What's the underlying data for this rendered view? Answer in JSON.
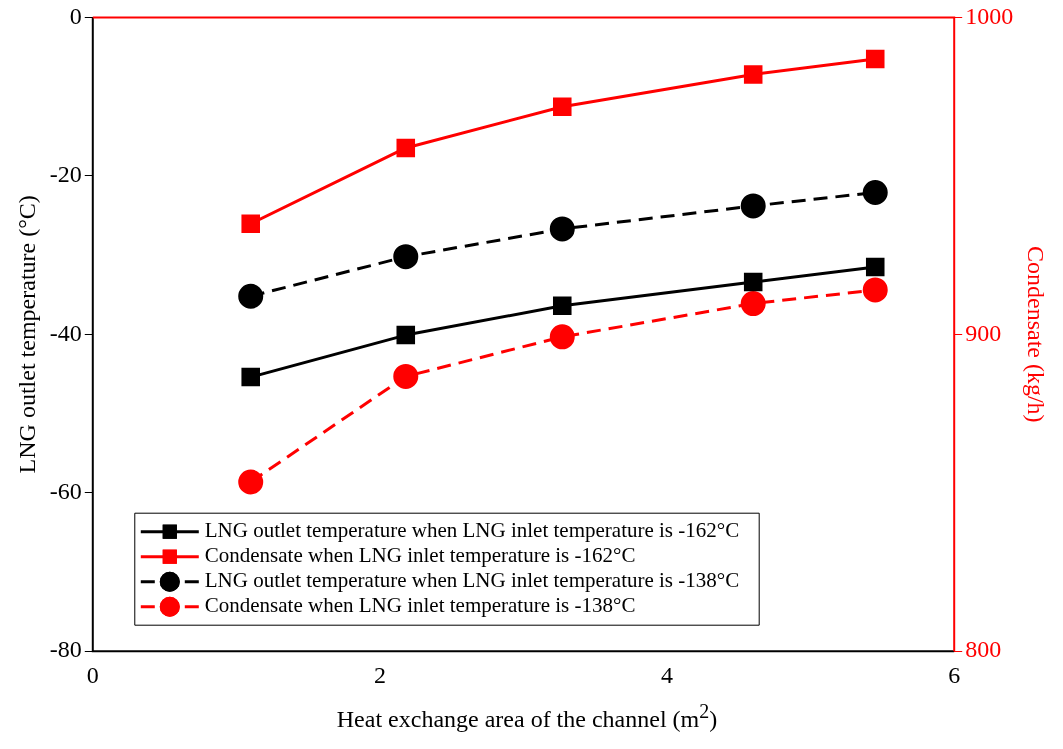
{
  "chart_data": {
    "type": "line",
    "xlabel": "Heat exchange area of the channel (m$^{2}$)",
    "ylabel": "LNG outlet temperature (°C)",
    "y2label": "Condensate (kg/h)",
    "x": [
      1.1,
      2.18,
      3.27,
      4.6,
      5.45
    ],
    "xlim": [
      0,
      6
    ],
    "xticks": [
      0,
      2,
      4,
      6
    ],
    "ylim": [
      -80,
      0
    ],
    "yticks": [
      -80,
      -60,
      -40,
      -20,
      0
    ],
    "y2lim": [
      800,
      1000
    ],
    "y2ticks": [
      800,
      900,
      1000
    ],
    "series": [
      {
        "name": "LNG outlet temperature when LNG inlet temperature is -162°C",
        "color": "#000000",
        "values": [
          -45.4,
          -40.1,
          -36.4,
          -33.4,
          -31.5
        ],
        "marker": "square",
        "line_style": "solid"
      },
      {
        "name": "Condensate when LNG inlet temperature is -162°C",
        "color": "#ff0000",
        "values": [
          934.9,
          958.8,
          971.8,
          982.0,
          986.9
        ],
        "marker": "square",
        "line_style": "solid",
        "axis": "y2"
      },
      {
        "name": "LNG outlet temperature when LNG inlet temperature is -138°C",
        "color": "#000000",
        "values": [
          -35.2,
          -30.2,
          -26.7,
          -23.8,
          -22.1
        ],
        "marker": "circle",
        "line_style": "dashed"
      },
      {
        "name": "Condensate when LNG inlet temperature is -138°C",
        "color": "#ff0000",
        "values": [
          853.4,
          886.7,
          899.2,
          909.7,
          914.0
        ],
        "marker": "circle",
        "line_style": "dashed",
        "axis": "y2"
      }
    ],
    "legend": "bottom left",
    "grid": false
  }
}
